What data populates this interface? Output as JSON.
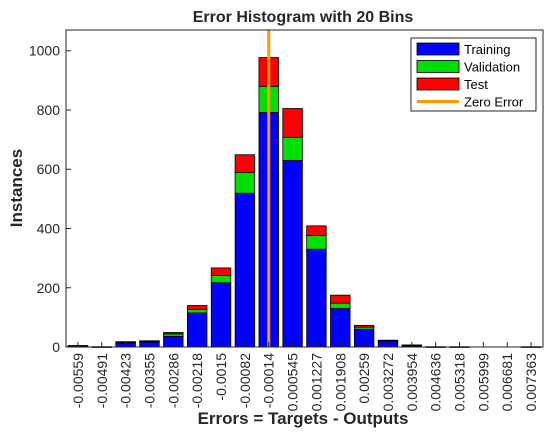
{
  "chart_data": {
    "type": "bar",
    "stacked": true,
    "title": "Error Histogram with 20 Bins",
    "xlabel": "Errors = Targets - Outputs",
    "ylabel": "Instances",
    "ylim": [
      0,
      1070
    ],
    "yticks": [
      0,
      200,
      400,
      600,
      800,
      1000
    ],
    "grid": false,
    "legend_position": "top-right",
    "categories": [
      "-0.00559",
      "-0.00491",
      "-0.00423",
      "-0.00355",
      "-0.00286",
      "-0.00218",
      "-0.0015",
      "-0.00082",
      "-0.00014",
      "0.000545",
      "0.001227",
      "0.001908",
      "0.00259",
      "0.003272",
      "0.003954",
      "0.004636",
      "0.005318",
      "0.005999",
      "0.006681",
      "0.007363"
    ],
    "series": [
      {
        "name": "Training",
        "color": "#0000ff",
        "values": [
          3,
          1,
          14,
          17,
          36,
          115,
          217,
          519,
          792,
          630,
          330,
          130,
          60,
          18,
          5,
          1,
          1,
          0,
          0,
          1
        ]
      },
      {
        "name": "Validation",
        "color": "#00e000",
        "values": [
          1,
          0,
          2,
          2,
          8,
          12,
          24,
          70,
          88,
          78,
          46,
          18,
          7,
          3,
          1,
          0,
          0,
          0,
          0,
          0
        ]
      },
      {
        "name": "Test",
        "color": "#ff0000",
        "values": [
          1,
          0,
          2,
          2,
          5,
          13,
          26,
          60,
          97,
          97,
          33,
          27,
          6,
          2,
          1,
          0,
          0,
          0,
          0,
          0
        ]
      }
    ],
    "reference_line": {
      "name": "Zero Error",
      "color": "#ff9900",
      "at_category": "-0.00014"
    }
  }
}
